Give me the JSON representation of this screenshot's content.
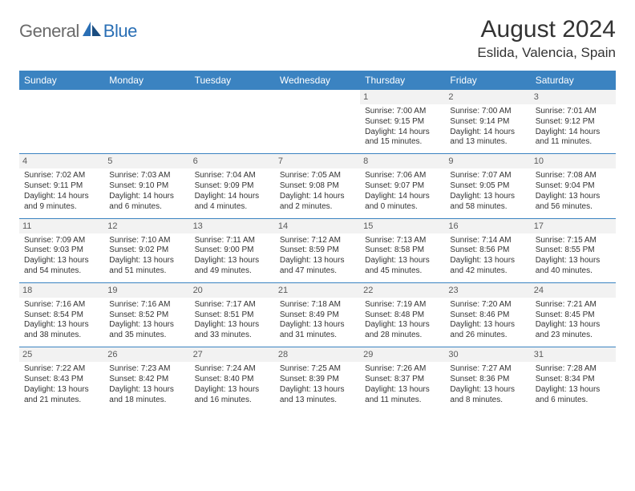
{
  "brand": {
    "word1": "General",
    "word2": "Blue",
    "logo_color": "#2a6fb5"
  },
  "title": "August 2024",
  "location": "Eslida, Valencia, Spain",
  "colors": {
    "header_bg": "#3b83c1",
    "header_text": "#ffffff",
    "body_text": "#333333",
    "daynum_bg": "#f2f2f2",
    "divider": "#3b83c1"
  },
  "weekdays": [
    "Sunday",
    "Monday",
    "Tuesday",
    "Wednesday",
    "Thursday",
    "Friday",
    "Saturday"
  ],
  "weeks": [
    [
      null,
      null,
      null,
      null,
      {
        "n": "1",
        "sr": "Sunrise: 7:00 AM",
        "ss": "Sunset: 9:15 PM",
        "dl": "Daylight: 14 hours and 15 minutes."
      },
      {
        "n": "2",
        "sr": "Sunrise: 7:00 AM",
        "ss": "Sunset: 9:14 PM",
        "dl": "Daylight: 14 hours and 13 minutes."
      },
      {
        "n": "3",
        "sr": "Sunrise: 7:01 AM",
        "ss": "Sunset: 9:12 PM",
        "dl": "Daylight: 14 hours and 11 minutes."
      }
    ],
    [
      {
        "n": "4",
        "sr": "Sunrise: 7:02 AM",
        "ss": "Sunset: 9:11 PM",
        "dl": "Daylight: 14 hours and 9 minutes."
      },
      {
        "n": "5",
        "sr": "Sunrise: 7:03 AM",
        "ss": "Sunset: 9:10 PM",
        "dl": "Daylight: 14 hours and 6 minutes."
      },
      {
        "n": "6",
        "sr": "Sunrise: 7:04 AM",
        "ss": "Sunset: 9:09 PM",
        "dl": "Daylight: 14 hours and 4 minutes."
      },
      {
        "n": "7",
        "sr": "Sunrise: 7:05 AM",
        "ss": "Sunset: 9:08 PM",
        "dl": "Daylight: 14 hours and 2 minutes."
      },
      {
        "n": "8",
        "sr": "Sunrise: 7:06 AM",
        "ss": "Sunset: 9:07 PM",
        "dl": "Daylight: 14 hours and 0 minutes."
      },
      {
        "n": "9",
        "sr": "Sunrise: 7:07 AM",
        "ss": "Sunset: 9:05 PM",
        "dl": "Daylight: 13 hours and 58 minutes."
      },
      {
        "n": "10",
        "sr": "Sunrise: 7:08 AM",
        "ss": "Sunset: 9:04 PM",
        "dl": "Daylight: 13 hours and 56 minutes."
      }
    ],
    [
      {
        "n": "11",
        "sr": "Sunrise: 7:09 AM",
        "ss": "Sunset: 9:03 PM",
        "dl": "Daylight: 13 hours and 54 minutes."
      },
      {
        "n": "12",
        "sr": "Sunrise: 7:10 AM",
        "ss": "Sunset: 9:02 PM",
        "dl": "Daylight: 13 hours and 51 minutes."
      },
      {
        "n": "13",
        "sr": "Sunrise: 7:11 AM",
        "ss": "Sunset: 9:00 PM",
        "dl": "Daylight: 13 hours and 49 minutes."
      },
      {
        "n": "14",
        "sr": "Sunrise: 7:12 AM",
        "ss": "Sunset: 8:59 PM",
        "dl": "Daylight: 13 hours and 47 minutes."
      },
      {
        "n": "15",
        "sr": "Sunrise: 7:13 AM",
        "ss": "Sunset: 8:58 PM",
        "dl": "Daylight: 13 hours and 45 minutes."
      },
      {
        "n": "16",
        "sr": "Sunrise: 7:14 AM",
        "ss": "Sunset: 8:56 PM",
        "dl": "Daylight: 13 hours and 42 minutes."
      },
      {
        "n": "17",
        "sr": "Sunrise: 7:15 AM",
        "ss": "Sunset: 8:55 PM",
        "dl": "Daylight: 13 hours and 40 minutes."
      }
    ],
    [
      {
        "n": "18",
        "sr": "Sunrise: 7:16 AM",
        "ss": "Sunset: 8:54 PM",
        "dl": "Daylight: 13 hours and 38 minutes."
      },
      {
        "n": "19",
        "sr": "Sunrise: 7:16 AM",
        "ss": "Sunset: 8:52 PM",
        "dl": "Daylight: 13 hours and 35 minutes."
      },
      {
        "n": "20",
        "sr": "Sunrise: 7:17 AM",
        "ss": "Sunset: 8:51 PM",
        "dl": "Daylight: 13 hours and 33 minutes."
      },
      {
        "n": "21",
        "sr": "Sunrise: 7:18 AM",
        "ss": "Sunset: 8:49 PM",
        "dl": "Daylight: 13 hours and 31 minutes."
      },
      {
        "n": "22",
        "sr": "Sunrise: 7:19 AM",
        "ss": "Sunset: 8:48 PM",
        "dl": "Daylight: 13 hours and 28 minutes."
      },
      {
        "n": "23",
        "sr": "Sunrise: 7:20 AM",
        "ss": "Sunset: 8:46 PM",
        "dl": "Daylight: 13 hours and 26 minutes."
      },
      {
        "n": "24",
        "sr": "Sunrise: 7:21 AM",
        "ss": "Sunset: 8:45 PM",
        "dl": "Daylight: 13 hours and 23 minutes."
      }
    ],
    [
      {
        "n": "25",
        "sr": "Sunrise: 7:22 AM",
        "ss": "Sunset: 8:43 PM",
        "dl": "Daylight: 13 hours and 21 minutes."
      },
      {
        "n": "26",
        "sr": "Sunrise: 7:23 AM",
        "ss": "Sunset: 8:42 PM",
        "dl": "Daylight: 13 hours and 18 minutes."
      },
      {
        "n": "27",
        "sr": "Sunrise: 7:24 AM",
        "ss": "Sunset: 8:40 PM",
        "dl": "Daylight: 13 hours and 16 minutes."
      },
      {
        "n": "28",
        "sr": "Sunrise: 7:25 AM",
        "ss": "Sunset: 8:39 PM",
        "dl": "Daylight: 13 hours and 13 minutes."
      },
      {
        "n": "29",
        "sr": "Sunrise: 7:26 AM",
        "ss": "Sunset: 8:37 PM",
        "dl": "Daylight: 13 hours and 11 minutes."
      },
      {
        "n": "30",
        "sr": "Sunrise: 7:27 AM",
        "ss": "Sunset: 8:36 PM",
        "dl": "Daylight: 13 hours and 8 minutes."
      },
      {
        "n": "31",
        "sr": "Sunrise: 7:28 AM",
        "ss": "Sunset: 8:34 PM",
        "dl": "Daylight: 13 hours and 6 minutes."
      }
    ]
  ]
}
